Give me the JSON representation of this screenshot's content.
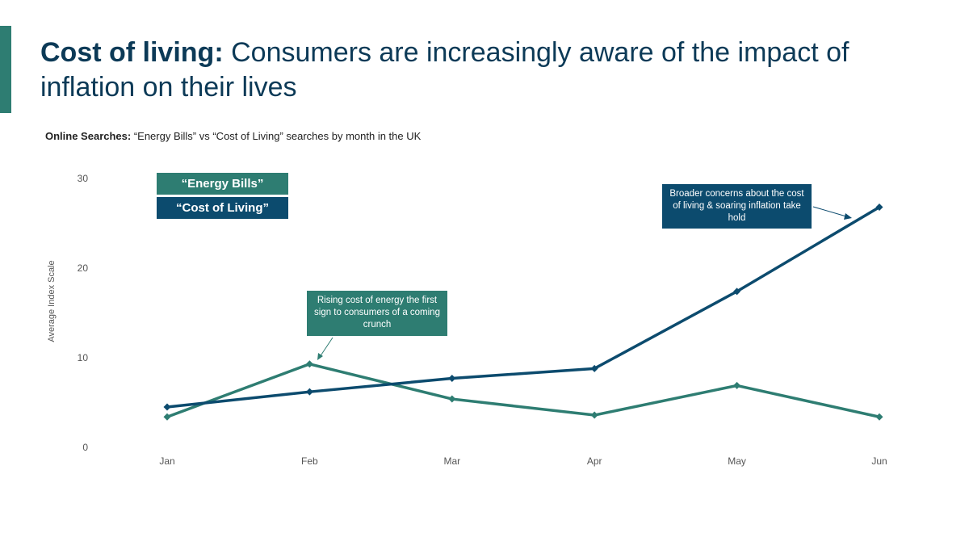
{
  "header": {
    "title_bold": "Cost of living:",
    "title_rest": " Consumers are increasingly aware of the impact of inflation on their lives",
    "subtitle_bold": "Online Searches:",
    "subtitle_rest": " “Energy Bills” vs “Cost of Living” searches by month in the UK"
  },
  "colors": {
    "energy": "#2e7d72",
    "cost_of_living": "#0c4b6e",
    "title": "#0c3a57"
  },
  "annotations": {
    "energy": "Rising cost of energy the first sign to consumers of a coming crunch",
    "cost_of_living": "Broader concerns about the cost of living & soaring inflation take hold"
  },
  "chart_data": {
    "type": "line",
    "categories": [
      "Jan",
      "Feb",
      "Mar",
      "Apr",
      "May",
      "Jun"
    ],
    "series": [
      {
        "name": "“Energy Bills”",
        "values": [
          3.4,
          9.3,
          5.4,
          3.6,
          6.9,
          3.4
        ]
      },
      {
        "name": "“Cost of Living”",
        "values": [
          4.5,
          6.2,
          7.7,
          8.8,
          17.4,
          26.8
        ]
      }
    ],
    "ylabel": "Average Index Scale",
    "yticks": [
      0,
      10,
      20,
      30
    ],
    "ylim": [
      0,
      30
    ],
    "grid": false,
    "legend": "top-left"
  }
}
